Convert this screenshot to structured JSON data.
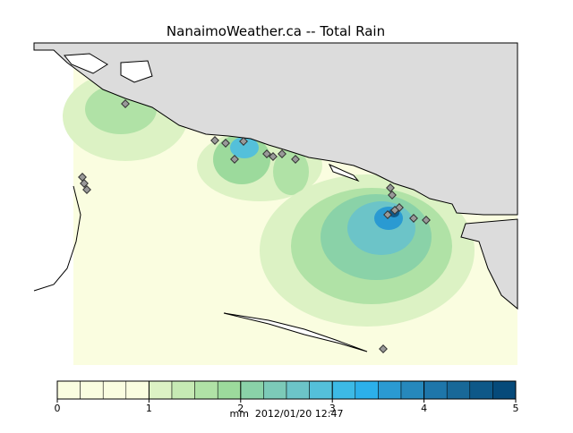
{
  "title": "NanaimoWeather.ca -- Total Rain",
  "colorbar": {
    "lim": [
      0,
      5
    ],
    "ticks": [
      0,
      1,
      2,
      3,
      4,
      5
    ],
    "colors": [
      "#fafde0",
      "#fafde0",
      "#fafde0",
      "#fafde0",
      "#dcf2c4",
      "#c6eab4",
      "#b0e2a6",
      "#9cda9c",
      "#8ad2a8",
      "#7ccab8",
      "#6cc4c8",
      "#54c0da",
      "#3cbae6",
      "#2cb0ea",
      "#2a9ad2",
      "#2688bc",
      "#1e76aa",
      "#186898",
      "#0e5888",
      "#064a7a"
    ],
    "label": "mm  2012/01/20 12:47"
  }
}
